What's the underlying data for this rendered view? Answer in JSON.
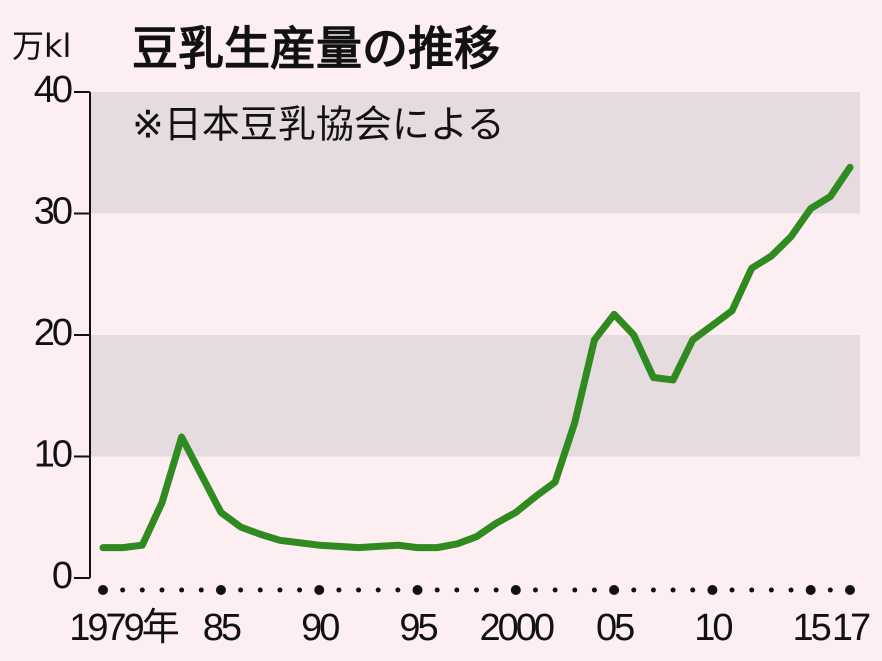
{
  "chart_data": {
    "type": "line",
    "title": "豆乳生産量の推移",
    "y_label": "万kl",
    "subtitle": "※日本豆乳協会による",
    "x": [
      1979,
      1980,
      1981,
      1982,
      1983,
      1984,
      1985,
      1986,
      1987,
      1988,
      1989,
      1990,
      1991,
      1992,
      1993,
      1994,
      1995,
      1996,
      1997,
      1998,
      1999,
      2000,
      2001,
      2002,
      2003,
      2004,
      2005,
      2006,
      2007,
      2008,
      2009,
      2010,
      2011,
      2012,
      2013,
      2014,
      2015,
      2016,
      2017
    ],
    "values": [
      2.5,
      2.5,
      2.7,
      6.2,
      11.6,
      8.5,
      5.4,
      4.2,
      3.6,
      3.1,
      2.9,
      2.7,
      2.6,
      2.5,
      2.6,
      2.7,
      2.5,
      2.5,
      2.8,
      3.4,
      4.5,
      5.4,
      6.7,
      7.9,
      12.8,
      19.6,
      21.7,
      20.0,
      16.5,
      16.3,
      19.6,
      20.8,
      22.0,
      25.5,
      26.5,
      28.1,
      30.4,
      31.4,
      33.8
    ],
    "color": "#2f8a1f",
    "xlim": [
      1979,
      2017
    ],
    "xticks": [
      {
        "value": 1979,
        "label": "1979年"
      },
      {
        "value": 1985,
        "label": "85"
      },
      {
        "value": 1990,
        "label": "90"
      },
      {
        "value": 1995,
        "label": "95"
      },
      2000,
      {
        "value": 2005,
        "label": "05"
      },
      {
        "value": 2010,
        "label": "10"
      },
      {
        "value": 2015,
        "label": "15"
      },
      {
        "value": 2017,
        "label": "17"
      }
    ],
    "ylim": [
      0,
      40
    ],
    "yticks": [
      0,
      10,
      20,
      30,
      40
    ]
  }
}
